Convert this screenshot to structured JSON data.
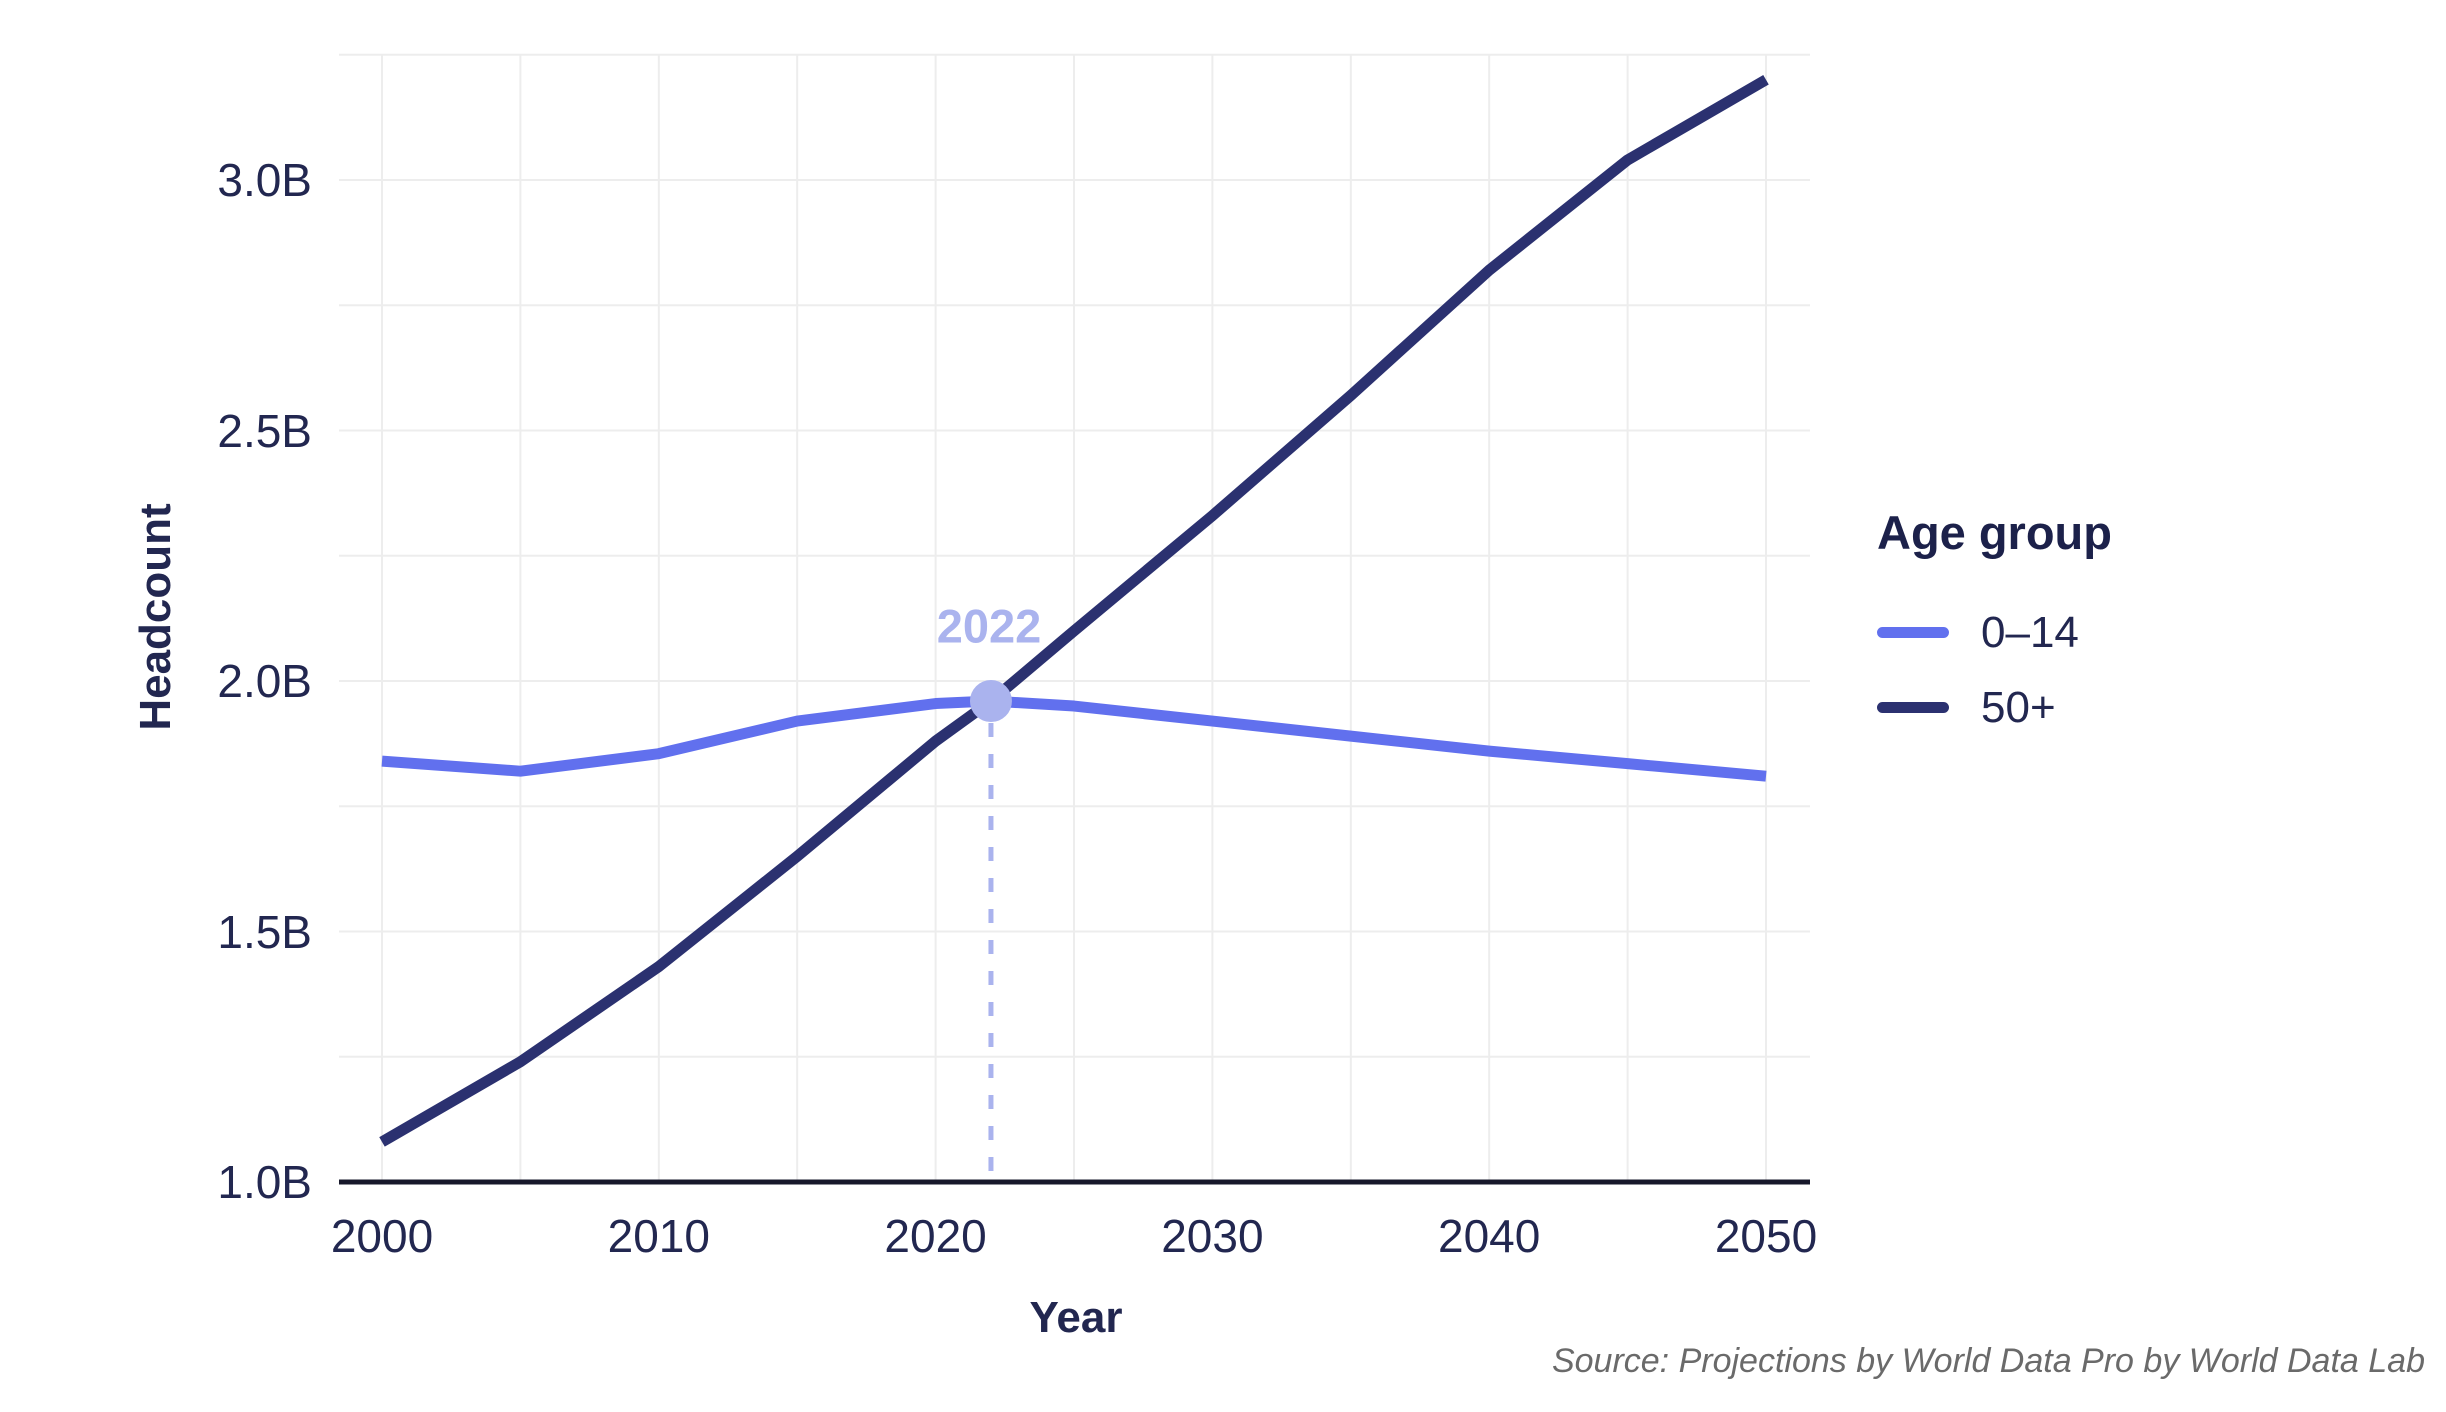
{
  "chart_data": {
    "type": "line",
    "title": "",
    "xlabel": "Year",
    "ylabel": "Headcount",
    "x_ticks": [
      2000,
      2010,
      2020,
      2030,
      2040,
      2050
    ],
    "y_ticks": [
      {
        "value": 1.0,
        "label": "1.0B"
      },
      {
        "value": 1.5,
        "label": "1.5B"
      },
      {
        "value": 2.0,
        "label": "2.0B"
      },
      {
        "value": 2.5,
        "label": "2.5B"
      },
      {
        "value": 3.0,
        "label": "3.0B"
      }
    ],
    "xlim": [
      2000,
      2050
    ],
    "ylim": [
      1.0,
      3.25
    ],
    "grid": {
      "on": true,
      "x_step_years": 5,
      "y_step": 0.25,
      "color": "#ededed"
    },
    "axis_color": "#17182b",
    "text_color": "#222750",
    "legend": {
      "title": "Age group",
      "position": "right"
    },
    "series": [
      {
        "name": "0–14",
        "color": "#6170ee",
        "x": [
          2000,
          2005,
          2010,
          2015,
          2020,
          2022,
          2025,
          2030,
          2035,
          2040,
          2045,
          2050
        ],
        "values": [
          1.84,
          1.82,
          1.855,
          1.92,
          1.955,
          1.96,
          1.95,
          1.92,
          1.89,
          1.86,
          1.835,
          1.81
        ]
      },
      {
        "name": "50+",
        "color": "#2b3170",
        "x": [
          2000,
          2005,
          2010,
          2015,
          2020,
          2022,
          2025,
          2030,
          2035,
          2040,
          2045,
          2050
        ],
        "values": [
          1.08,
          1.24,
          1.43,
          1.65,
          1.88,
          1.96,
          2.1,
          2.33,
          2.57,
          2.82,
          3.04,
          3.2
        ]
      }
    ],
    "annotation": {
      "label": "2022",
      "x": 2022,
      "y": 1.96,
      "color": "#aab3ee"
    },
    "source": "Source: Projections by World Data Pro by World Data Lab"
  }
}
